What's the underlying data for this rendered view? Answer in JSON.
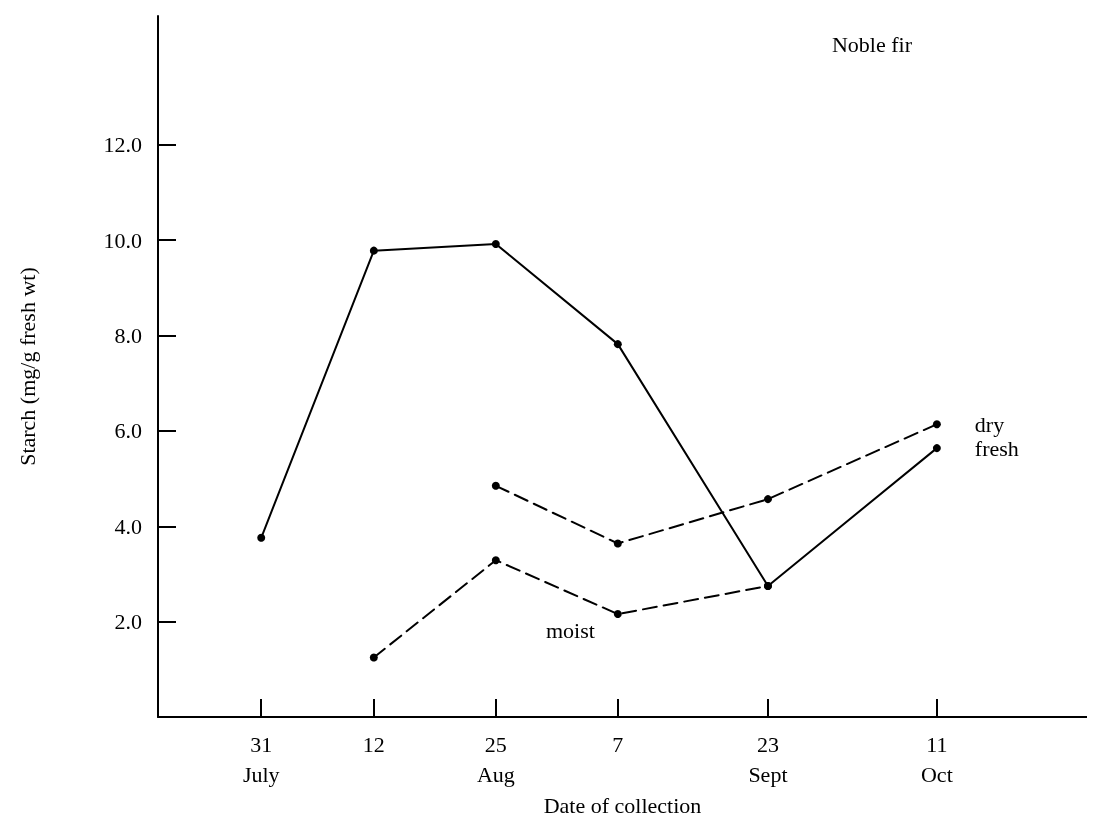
{
  "chart_data": {
    "type": "line",
    "title": "Noble fir",
    "xlabel": "Date of collection",
    "ylabel": "Starch (mg/g fresh wt)",
    "xlim": [
      "--07-20",
      "--10-27"
    ],
    "xticks": [
      {
        "value": "--07-31",
        "label": "31\nJuly"
      },
      {
        "value": "--08-12",
        "label": "12"
      },
      {
        "value": "--08-25",
        "label": "25\nAug"
      },
      {
        "value": "--09-07",
        "label": "7"
      },
      {
        "value": "--09-23",
        "label": "23\nSept"
      },
      {
        "value": "--10-11",
        "label": "11\nOct"
      }
    ],
    "ylim": [
      0,
      14.7
    ],
    "yticks": [
      {
        "value": 2,
        "label": "2.0"
      },
      {
        "value": 4,
        "label": "4.0"
      },
      {
        "value": 6,
        "label": "6.0"
      },
      {
        "value": 8,
        "label": "8.0"
      },
      {
        "value": 10,
        "label": "10.0"
      },
      {
        "value": 12,
        "label": "12.0"
      }
    ],
    "grid": false,
    "legend": false,
    "marker": "circle",
    "series": [
      {
        "name": "fresh",
        "color": "#000000",
        "line_style": "solid",
        "x": [
          "--07-31",
          "--08-12",
          "--08-25",
          "--09-07",
          "--09-23",
          "--10-11"
        ],
        "values": [
          3.76,
          9.78,
          9.92,
          7.82,
          2.75,
          5.64
        ]
      },
      {
        "name": "dry",
        "color": "#000000",
        "line_style": "dashed",
        "x": [
          "--08-25",
          "--09-07",
          "--09-23",
          "--10-11"
        ],
        "values": [
          4.85,
          3.64,
          4.57,
          6.14
        ]
      },
      {
        "name": "moist",
        "color": "#000000",
        "line_style": "dashed",
        "x": [
          "--08-12",
          "--08-25",
          "--09-07",
          "--09-23"
        ],
        "values": [
          1.25,
          3.29,
          2.16,
          2.75
        ]
      }
    ]
  }
}
